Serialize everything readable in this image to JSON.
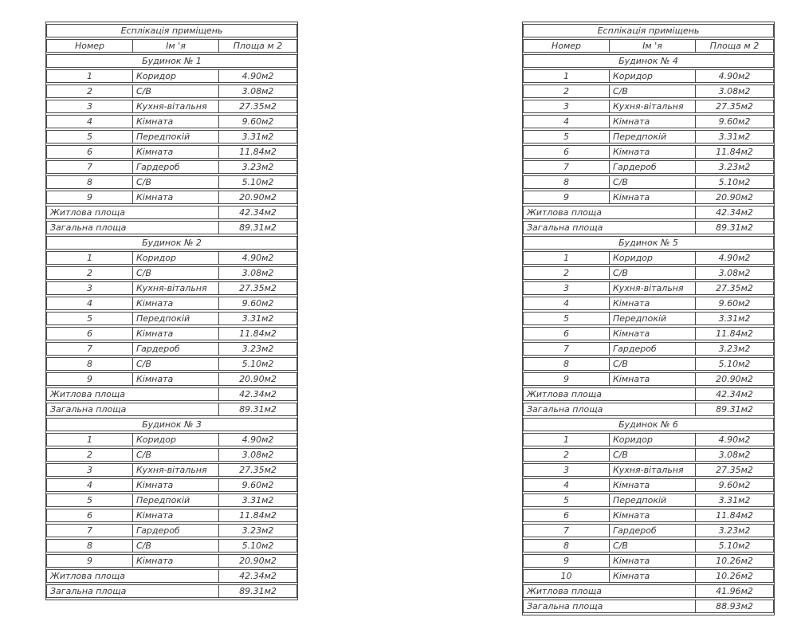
{
  "document": {
    "title": "Есплікація приміщень",
    "columns": [
      "Номер",
      "Ім 'я",
      "Площа м 2"
    ],
    "summary_labels": {
      "living": "Житлова площа",
      "total": "Загальна площа"
    }
  },
  "colors": {
    "border": "#4a4a4a",
    "text": "#383838",
    "background": "#ffffff"
  },
  "tables": [
    {
      "id": "explication-left",
      "sections": [
        {
          "header": "Будинок № 1",
          "rows": [
            {
              "num": "1",
              "name": "Коридор",
              "area": "4.90м2"
            },
            {
              "num": "2",
              "name": "С/В",
              "area": "3.08м2"
            },
            {
              "num": "3",
              "name": "Кухня-вітальня",
              "area": "27.35м2"
            },
            {
              "num": "4",
              "name": "Кімната",
              "area": "9.60м2"
            },
            {
              "num": "5",
              "name": "Передпокій",
              "area": "3.31м2"
            },
            {
              "num": "6",
              "name": "Кімната",
              "area": "11.84м2"
            },
            {
              "num": "7",
              "name": "Гардероб",
              "area": "3.23м2"
            },
            {
              "num": "8",
              "name": "С/В",
              "area": "5.10м2"
            },
            {
              "num": "9",
              "name": "Кімната",
              "area": "20.90м2"
            }
          ],
          "living_area": "42.34м2",
          "total_area": "89.31м2"
        },
        {
          "header": "Будинок № 2",
          "rows": [
            {
              "num": "1",
              "name": "Коридор",
              "area": "4.90м2"
            },
            {
              "num": "2",
              "name": "С/В",
              "area": "3.08м2"
            },
            {
              "num": "3",
              "name": "Кухня-вітальня",
              "area": "27.35м2"
            },
            {
              "num": "4",
              "name": "Кімната",
              "area": "9.60м2"
            },
            {
              "num": "5",
              "name": "Передпокій",
              "area": "3.31м2"
            },
            {
              "num": "6",
              "name": "Кімната",
              "area": "11.84м2"
            },
            {
              "num": "7",
              "name": "Гардероб",
              "area": "3.23м2"
            },
            {
              "num": "8",
              "name": "С/В",
              "area": "5.10м2"
            },
            {
              "num": "9",
              "name": "Кімната",
              "area": "20.90м2"
            }
          ],
          "living_area": "42.34м2",
          "total_area": "89.31м2"
        },
        {
          "header": "Будинок № 3",
          "rows": [
            {
              "num": "1",
              "name": "Коридор",
              "area": "4.90м2"
            },
            {
              "num": "2",
              "name": "С/В",
              "area": "3.08м2"
            },
            {
              "num": "3",
              "name": "Кухня-вітальня",
              "area": "27.35м2"
            },
            {
              "num": "4",
              "name": "Кімната",
              "area": "9.60м2"
            },
            {
              "num": "5",
              "name": "Передпокій",
              "area": "3.31м2"
            },
            {
              "num": "6",
              "name": "Кімната",
              "area": "11.84м2"
            },
            {
              "num": "7",
              "name": "Гардероб",
              "area": "3.23м2"
            },
            {
              "num": "8",
              "name": "С/В",
              "area": "5.10м2"
            },
            {
              "num": "9",
              "name": "Кімната",
              "area": "20.90м2"
            }
          ],
          "living_area": "42.34м2",
          "total_area": "89.31м2"
        }
      ]
    },
    {
      "id": "explication-right",
      "sections": [
        {
          "header": "Будинок № 4",
          "rows": [
            {
              "num": "1",
              "name": "Коридор",
              "area": "4.90м2"
            },
            {
              "num": "2",
              "name": "С/В",
              "area": "3.08м2"
            },
            {
              "num": "3",
              "name": "Кухня-вітальня",
              "area": "27.35м2"
            },
            {
              "num": "4",
              "name": "Кімната",
              "area": "9.60м2"
            },
            {
              "num": "5",
              "name": "Передпокій",
              "area": "3.31м2"
            },
            {
              "num": "6",
              "name": "Кімната",
              "area": "11.84м2"
            },
            {
              "num": "7",
              "name": "Гардероб",
              "area": "3.23м2"
            },
            {
              "num": "8",
              "name": "С/В",
              "area": "5.10м2"
            },
            {
              "num": "9",
              "name": "Кімната",
              "area": "20.90м2"
            }
          ],
          "living_area": "42.34м2",
          "total_area": "89.31м2"
        },
        {
          "header": "Будинок № 5",
          "rows": [
            {
              "num": "1",
              "name": "Коридор",
              "area": "4.90м2"
            },
            {
              "num": "2",
              "name": "С/В",
              "area": "3.08м2"
            },
            {
              "num": "3",
              "name": "Кухня-вітальня",
              "area": "27.35м2"
            },
            {
              "num": "4",
              "name": "Кімната",
              "area": "9.60м2"
            },
            {
              "num": "5",
              "name": "Передпокій",
              "area": "3.31м2"
            },
            {
              "num": "6",
              "name": "Кімната",
              "area": "11.84м2"
            },
            {
              "num": "7",
              "name": "Гардероб",
              "area": "3.23м2"
            },
            {
              "num": "8",
              "name": "С/В",
              "area": "5.10м2"
            },
            {
              "num": "9",
              "name": "Кімната",
              "area": "20.90м2"
            }
          ],
          "living_area": "42.34м2",
          "total_area": "89.31м2"
        },
        {
          "header": "Будинок № 6",
          "rows": [
            {
              "num": "1",
              "name": "Коридор",
              "area": "4.90м2"
            },
            {
              "num": "2",
              "name": "С/В",
              "area": "3.08м2"
            },
            {
              "num": "3",
              "name": "Кухня-вітальня",
              "area": "27.35м2"
            },
            {
              "num": "4",
              "name": "Кімната",
              "area": "9.60м2"
            },
            {
              "num": "5",
              "name": "Передпокій",
              "area": "3.31м2"
            },
            {
              "num": "6",
              "name": "Кімната",
              "area": "11.84м2"
            },
            {
              "num": "7",
              "name": "Гардероб",
              "area": "3.23м2"
            },
            {
              "num": "8",
              "name": "С/В",
              "area": "5.10м2"
            },
            {
              "num": "9",
              "name": "Кімната",
              "area": "10.26м2"
            },
            {
              "num": "10",
              "name": "Кімната",
              "area": "10.26м2"
            }
          ],
          "living_area": "41.96м2",
          "total_area": "88.93м2"
        }
      ]
    }
  ]
}
